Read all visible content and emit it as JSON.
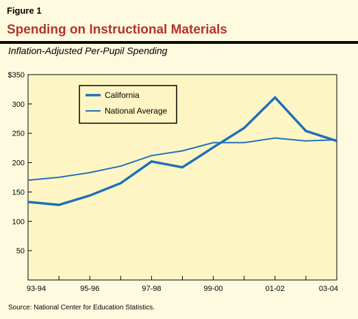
{
  "figure": {
    "label": "Figure 1",
    "title": "Spending on Instructional Materials",
    "subtitle": "Inflation-Adjusted Per-Pupil Spending",
    "source": "Source: National Center for Education Statistics."
  },
  "colors": {
    "title": "#b5332b",
    "line": "#1f6fb8",
    "plot_bg": "#fdf6c4",
    "page_bg": "#fefae0"
  },
  "chart_data": {
    "type": "line",
    "title": "Spending on Instructional Materials",
    "subtitle": "Inflation-Adjusted Per-Pupil Spending",
    "xlabel": "",
    "ylabel": "",
    "x": [
      "93-94",
      "94-95",
      "95-96",
      "96-97",
      "97-98",
      "98-99",
      "99-00",
      "00-01",
      "01-02",
      "02-03",
      "03-04"
    ],
    "x_tick_labels": [
      "93-94",
      "",
      "95-96",
      "",
      "97-98",
      "",
      "99-00",
      "",
      "01-02",
      "",
      "03-04"
    ],
    "y_ticks": [
      50,
      100,
      150,
      200,
      250,
      300,
      350
    ],
    "y_tick_labels": [
      "50",
      "100",
      "150",
      "200",
      "250",
      "300",
      "$350"
    ],
    "ylim": [
      0,
      350
    ],
    "grid": false,
    "legend_position": "top-left",
    "series": [
      {
        "name": "California",
        "values": [
          133,
          128,
          144,
          165,
          202,
          192,
          226,
          259,
          311,
          254,
          237
        ],
        "style": "thick"
      },
      {
        "name": "National Average",
        "values": [
          170,
          175,
          183,
          194,
          212,
          220,
          234,
          234,
          242,
          237,
          239
        ],
        "style": "thin"
      }
    ]
  }
}
